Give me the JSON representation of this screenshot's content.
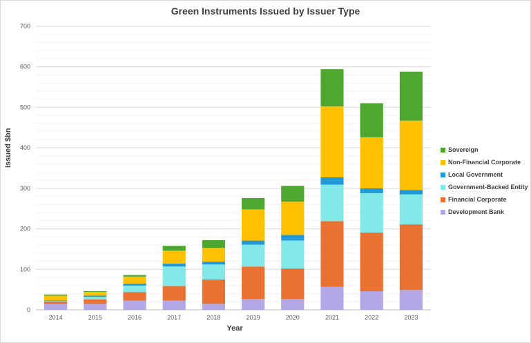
{
  "chart_data": {
    "type": "bar",
    "stacked": true,
    "title": "Green Instruments Issued by Issuer Type",
    "xlabel": "Year",
    "ylabel": "Issued $bn",
    "ylim": [
      0,
      700
    ],
    "yticks": [
      0,
      100,
      200,
      300,
      400,
      500,
      600,
      700
    ],
    "grid": true,
    "legend_position": "right",
    "categories": [
      "2014",
      "2015",
      "2016",
      "2017",
      "2018",
      "2019",
      "2020",
      "2021",
      "2022",
      "2023"
    ],
    "series": [
      {
        "name": "Development Bank",
        "color": "#b4a7e5",
        "values": [
          15,
          15,
          23,
          23,
          15,
          27,
          27,
          57,
          46,
          49
        ]
      },
      {
        "name": "Financial Corporate",
        "color": "#e97132",
        "values": [
          6,
          11,
          21,
          36,
          60,
          80,
          75,
          162,
          145,
          162
        ]
      },
      {
        "name": "Government-Backed Entity",
        "color": "#83e8e8",
        "values": [
          2,
          6,
          16,
          48,
          37,
          54,
          69,
          90,
          97,
          74
        ]
      },
      {
        "name": "Local Government",
        "color": "#2199d6",
        "values": [
          1,
          3,
          5,
          7,
          7,
          10,
          14,
          18,
          12,
          11
        ]
      },
      {
        "name": "Non-Financial Corporate",
        "color": "#ffc000",
        "values": [
          11,
          9,
          17,
          32,
          34,
          77,
          82,
          175,
          126,
          171
        ]
      },
      {
        "name": "Sovereign",
        "color": "#4ea72e",
        "values": [
          3,
          2,
          4,
          12,
          19,
          28,
          39,
          92,
          84,
          121
        ]
      }
    ]
  }
}
